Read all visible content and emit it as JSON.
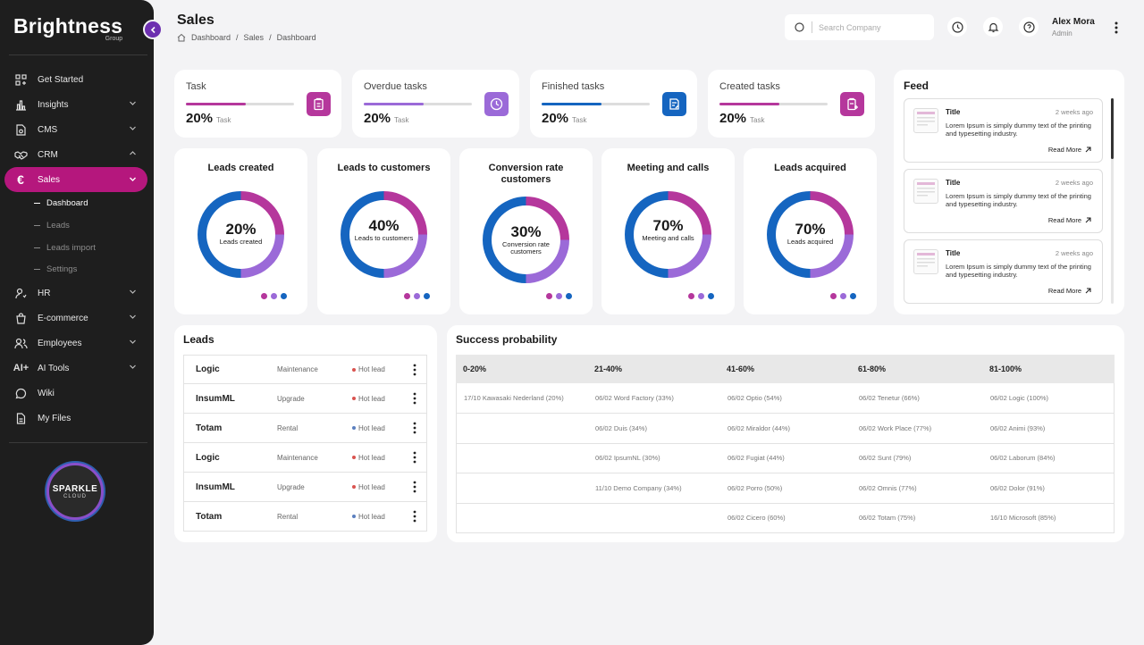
{
  "app": {
    "brand": "Brightness",
    "brand_sub": "Group"
  },
  "sidebar": {
    "items": [
      {
        "label": "Get Started",
        "icon": "grid-plus-icon"
      },
      {
        "label": "Insights",
        "icon": "bar-chart-icon"
      },
      {
        "label": "CMS",
        "icon": "document-gear-icon"
      },
      {
        "label": "CRM",
        "icon": "handshake-icon"
      },
      {
        "label": "Sales",
        "icon": "euro-icon"
      },
      {
        "label": "HR",
        "icon": "user-settings-icon"
      },
      {
        "label": "E-commerce",
        "icon": "shopping-bag-icon"
      },
      {
        "label": "Employees",
        "icon": "users-icon"
      },
      {
        "label": "AI Tools",
        "icon": "ai-plus-icon"
      },
      {
        "label": "Wiki",
        "icon": "chat-bubble-icon"
      },
      {
        "label": "My Files",
        "icon": "file-icon"
      }
    ],
    "sales_sub": [
      "Dashboard",
      "Leads",
      "Leads import",
      "Settings"
    ],
    "badge_line1": "SPARKLE",
    "badge_line2": "CLOUD"
  },
  "header": {
    "title": "Sales",
    "crumbs": [
      "Dashboard",
      "Sales",
      "Dashboard"
    ],
    "search_placeholder": "Search Company",
    "user_name": "Alex Mora",
    "user_role": "Admin"
  },
  "tasks": [
    {
      "title": "Task",
      "pct": "20%",
      "progress": 0.55,
      "unit": "Task",
      "color": "#b5379c"
    },
    {
      "title": "Overdue tasks",
      "pct": "20%",
      "progress": 0.55,
      "unit": "Task",
      "color": "#9b6ad8"
    },
    {
      "title": "Finished tasks",
      "pct": "20%",
      "progress": 0.55,
      "unit": "Task",
      "color": "#1565c0"
    },
    {
      "title": "Created tasks",
      "pct": "20%",
      "progress": 0.55,
      "unit": "Task",
      "color": "#b5379c"
    }
  ],
  "donuts": [
    {
      "title": "Leads created",
      "value": "20%",
      "label": "Leads created"
    },
    {
      "title": "Leads to customers",
      "value": "40%",
      "label": "Leads to customers"
    },
    {
      "title": "Conversion rate customers",
      "value": "30%",
      "label": "Conversion rate customers"
    },
    {
      "title": "Meeting and calls",
      "value": "70%",
      "label": "Meeting and calls"
    },
    {
      "title": "Leads acquired",
      "value": "70%",
      "label": "Leads acquired"
    }
  ],
  "colors": {
    "blue": "#1565c0",
    "magenta": "#b5379c",
    "violet": "#9b6ad8",
    "hot": "#d9534f",
    "cold": "#5b7fbf",
    "active": "#b5177d"
  },
  "feed": {
    "title": "Feed",
    "items": [
      {
        "title": "Title",
        "time": "2 weeks ago",
        "text": "Lorem Ipsum is simply dummy text of the printing and typesetting industry.",
        "more": "Read More"
      },
      {
        "title": "Title",
        "time": "2 weeks ago",
        "text": "Lorem Ipsum is simply dummy text of the printing and typesetting industry.",
        "more": "Read More"
      },
      {
        "title": "Title",
        "time": "2 weeks ago",
        "text": "Lorem Ipsum is simply dummy text of the printing and typesetting industry.",
        "more": "Read More"
      }
    ]
  },
  "leads": {
    "title": "Leads",
    "rows": [
      {
        "name": "Logic",
        "type": "Maintenance",
        "status": "Hot lead",
        "dot": "hot"
      },
      {
        "name": "InsumML",
        "type": "Upgrade",
        "status": "Hot lead",
        "dot": "hot"
      },
      {
        "name": "Totam",
        "type": "Rental",
        "status": "Hot lead",
        "dot": "cold"
      },
      {
        "name": "Logic",
        "type": "Maintenance",
        "status": "Hot lead",
        "dot": "hot"
      },
      {
        "name": "InsumML",
        "type": "Upgrade",
        "status": "Hot lead",
        "dot": "hot"
      },
      {
        "name": "Totam",
        "type": "Rental",
        "status": "Hot lead",
        "dot": "cold"
      }
    ]
  },
  "success": {
    "title": "Success probability",
    "headers": [
      "0-20%",
      "21-40%",
      "41-60%",
      "61-80%",
      "81-100%"
    ],
    "rows": [
      [
        "17/10 Kawasaki Nederland (20%)",
        "06/02 Word Factory (33%)",
        "06/02 Optio (54%)",
        "06/02 Tenetur (66%)",
        "06/02 Logic (100%)"
      ],
      [
        "",
        "06/02 Duis  (34%)",
        "06/02 Miraldor (44%)",
        "06/02 Work Place (77%)",
        "06/02 Animi (93%)"
      ],
      [
        "",
        "06/02 IpsumNL (30%)",
        "06/02 Fugiat (44%)",
        "06/02 Sunt (79%)",
        "06/02 Laborum (84%)"
      ],
      [
        "",
        "11/10 Demo Company (34%)",
        "06/02 Porro (50%)",
        "06/02 Omnis (77%)",
        "06/02 Dolor (91%)"
      ],
      [
        "",
        "",
        "06/02 Cicero (60%)",
        "06/02 Totam (75%)",
        "16/10 Microsoft (85%)"
      ]
    ]
  }
}
